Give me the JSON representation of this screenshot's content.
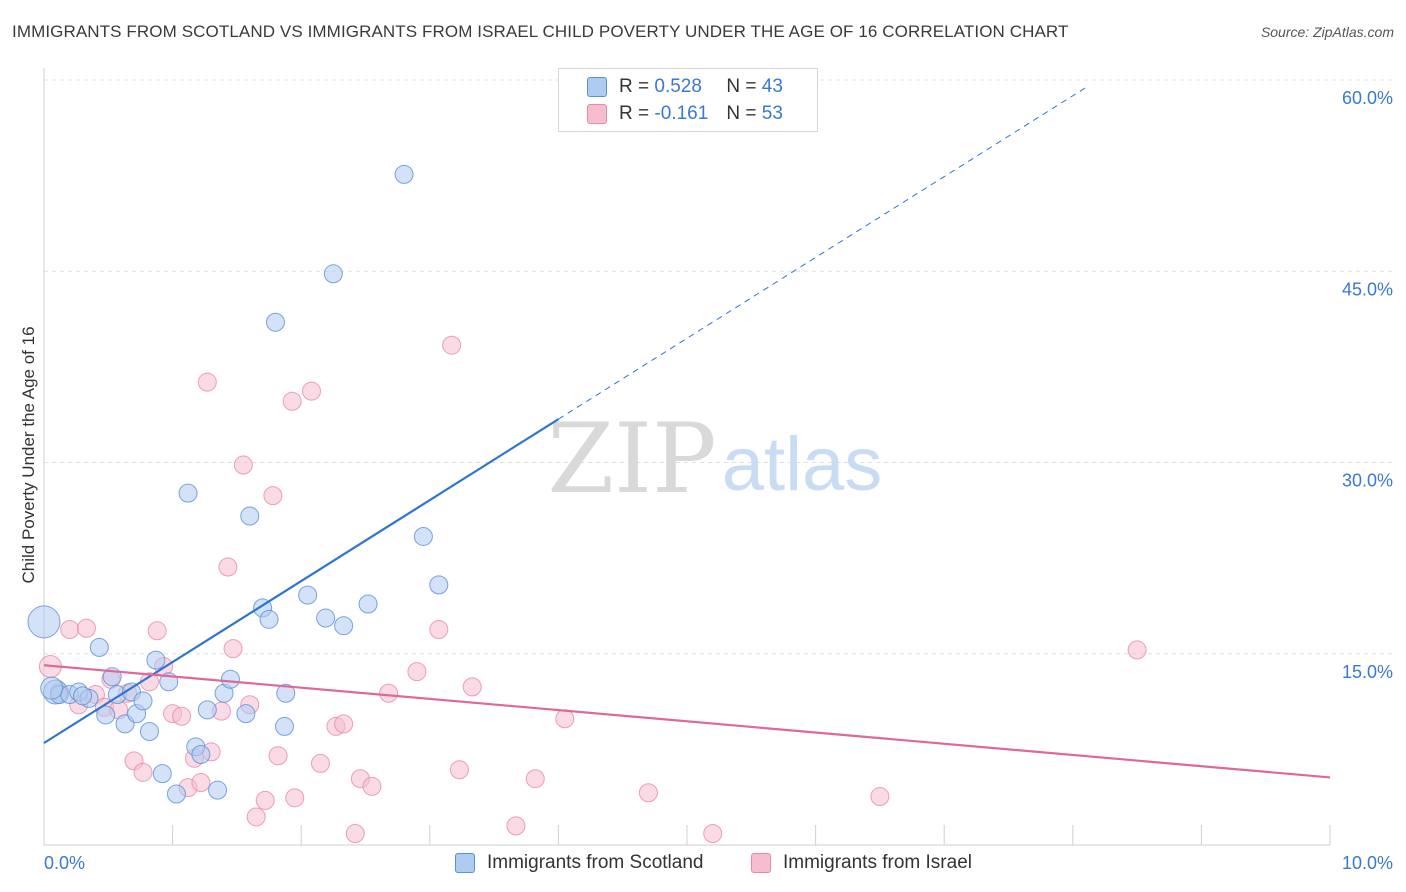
{
  "title": "IMMIGRANTS FROM SCOTLAND VS IMMIGRANTS FROM ISRAEL CHILD POVERTY UNDER THE AGE OF 16 CORRELATION CHART",
  "source": "Source: ZipAtlas.com",
  "watermark": {
    "zip": "ZIP",
    "atlas": "atlas"
  },
  "legend": {
    "rows": [
      {
        "r_label": "R = ",
        "r_value": "0.528",
        "n_label": "N = ",
        "n_value": "43"
      },
      {
        "r_label": "R = ",
        "r_value": "-0.161",
        "n_label": "N = ",
        "n_value": "53"
      }
    ]
  },
  "colors": {
    "scotland_fill": "#aecbf0",
    "scotland_stroke": "#5b8fd6",
    "scotland_line": "#2f74d0",
    "israel_fill": "#f6bdd0",
    "israel_stroke": "#e68aa8",
    "israel_line": "#e0679a",
    "tick_label": "#3a78d1",
    "grid": "#e0e0e0"
  },
  "chart_data": {
    "type": "scatter",
    "title": "IMMIGRANTS FROM SCOTLAND VS IMMIGRANTS FROM ISRAEL CHILD POVERTY UNDER THE AGE OF 16 CORRELATION CHART",
    "xlabel": "",
    "ylabel": "Child Poverty Under the Age of 16",
    "xlim": [
      0,
      10
    ],
    "ylim": [
      0,
      60
    ],
    "x_tick_labels": [
      "0.0%",
      "10.0%"
    ],
    "y_ticks": [
      15,
      30,
      45,
      60
    ],
    "y_tick_labels": [
      "15.0%",
      "30.0%",
      "45.0%",
      "60.0%"
    ],
    "grid": true,
    "legend_position": "top-center and bottom",
    "series": [
      {
        "name": "Immigrants from Scotland",
        "points": [
          [
            0.0,
            17.5,
            16
          ],
          [
            0.09,
            12.0,
            12
          ],
          [
            0.12,
            11.8,
            9
          ],
          [
            0.2,
            11.8,
            9
          ],
          [
            0.27,
            12.0,
            9
          ],
          [
            0.35,
            11.5,
            9
          ],
          [
            0.43,
            15.5,
            9
          ],
          [
            0.48,
            10.2,
            9
          ],
          [
            0.53,
            13.2,
            9
          ],
          [
            0.57,
            11.8,
            9
          ],
          [
            0.63,
            9.5,
            9
          ],
          [
            0.68,
            12.0,
            9
          ],
          [
            0.72,
            10.3,
            9
          ],
          [
            0.77,
            11.3,
            9
          ],
          [
            0.82,
            8.9,
            9
          ],
          [
            0.87,
            14.5,
            9
          ],
          [
            0.92,
            5.6,
            9
          ],
          [
            0.97,
            12.8,
            9
          ],
          [
            1.03,
            4.0,
            9
          ],
          [
            1.12,
            27.6,
            9
          ],
          [
            1.18,
            7.7,
            9
          ],
          [
            1.22,
            7.1,
            9
          ],
          [
            1.27,
            10.6,
            9
          ],
          [
            1.35,
            4.3,
            9
          ],
          [
            1.4,
            11.9,
            9
          ],
          [
            1.45,
            13.0,
            9
          ],
          [
            1.57,
            10.3,
            9
          ],
          [
            1.6,
            25.8,
            9
          ],
          [
            1.7,
            18.6,
            9
          ],
          [
            1.75,
            17.7,
            9
          ],
          [
            1.8,
            41.0,
            9
          ],
          [
            1.87,
            9.3,
            9
          ],
          [
            1.88,
            11.9,
            9
          ],
          [
            2.05,
            19.6,
            9
          ],
          [
            2.19,
            17.8,
            9
          ],
          [
            2.25,
            44.8,
            9
          ],
          [
            2.33,
            17.2,
            9
          ],
          [
            2.52,
            18.9,
            9
          ],
          [
            2.8,
            52.6,
            9
          ],
          [
            2.95,
            24.2,
            9
          ],
          [
            3.07,
            20.4,
            9
          ],
          [
            0.06,
            12.3,
            11
          ],
          [
            0.3,
            11.7,
            9
          ]
        ],
        "trend": {
          "x0": 0,
          "y0": 8.0,
          "x1": 4.0,
          "y1": 33.4,
          "dashed_x1": 8.1,
          "dashed_y1": 59.4
        }
      },
      {
        "name": "Immigrants from Israel",
        "points": [
          [
            0.05,
            14.0,
            11
          ],
          [
            0.12,
            12.0,
            9
          ],
          [
            0.2,
            16.9,
            9
          ],
          [
            0.27,
            11.0,
            9
          ],
          [
            0.33,
            17.0,
            9
          ],
          [
            0.4,
            11.8,
            9
          ],
          [
            0.47,
            10.8,
            9
          ],
          [
            0.52,
            13.0,
            9
          ],
          [
            0.58,
            10.6,
            9
          ],
          [
            0.65,
            11.9,
            9
          ],
          [
            0.7,
            6.6,
            9
          ],
          [
            0.77,
            5.7,
            9
          ],
          [
            0.82,
            12.8,
            9
          ],
          [
            0.88,
            16.8,
            9
          ],
          [
            0.93,
            14.0,
            9
          ],
          [
            1.0,
            10.3,
            9
          ],
          [
            1.07,
            10.1,
            9
          ],
          [
            1.12,
            4.5,
            9
          ],
          [
            1.17,
            6.8,
            9
          ],
          [
            1.22,
            4.9,
            9
          ],
          [
            1.27,
            36.3,
            9
          ],
          [
            1.3,
            7.3,
            9
          ],
          [
            1.38,
            10.5,
            9
          ],
          [
            1.43,
            21.8,
            9
          ],
          [
            1.47,
            15.4,
            9
          ],
          [
            1.55,
            29.8,
            9
          ],
          [
            1.6,
            11.0,
            9
          ],
          [
            1.65,
            2.2,
            9
          ],
          [
            1.72,
            3.5,
            9
          ],
          [
            1.78,
            27.4,
            9
          ],
          [
            1.82,
            7.0,
            9
          ],
          [
            1.93,
            34.8,
            9
          ],
          [
            1.95,
            3.7,
            9
          ],
          [
            2.08,
            35.6,
            9
          ],
          [
            2.15,
            6.4,
            9
          ],
          [
            2.27,
            9.3,
            9
          ],
          [
            2.33,
            9.5,
            9
          ],
          [
            2.42,
            0.9,
            9
          ],
          [
            2.46,
            5.2,
            9
          ],
          [
            2.55,
            4.6,
            9
          ],
          [
            2.68,
            11.9,
            9
          ],
          [
            2.9,
            13.6,
            9
          ],
          [
            3.07,
            16.9,
            9
          ],
          [
            3.17,
            39.2,
            9
          ],
          [
            3.23,
            5.9,
            9
          ],
          [
            3.33,
            12.4,
            9
          ],
          [
            3.67,
            1.5,
            9
          ],
          [
            3.82,
            5.2,
            9
          ],
          [
            4.05,
            9.9,
            9
          ],
          [
            4.7,
            4.1,
            9
          ],
          [
            5.2,
            0.9,
            9
          ],
          [
            6.5,
            3.8,
            9
          ],
          [
            8.5,
            15.3,
            9
          ]
        ],
        "trend": {
          "x0": 0,
          "y0": 14.1,
          "x1": 10.0,
          "y1": 5.3
        }
      }
    ]
  },
  "bottom_legend": [
    {
      "label": "Immigrants from Scotland"
    },
    {
      "label": "Immigrants from Israel"
    }
  ]
}
